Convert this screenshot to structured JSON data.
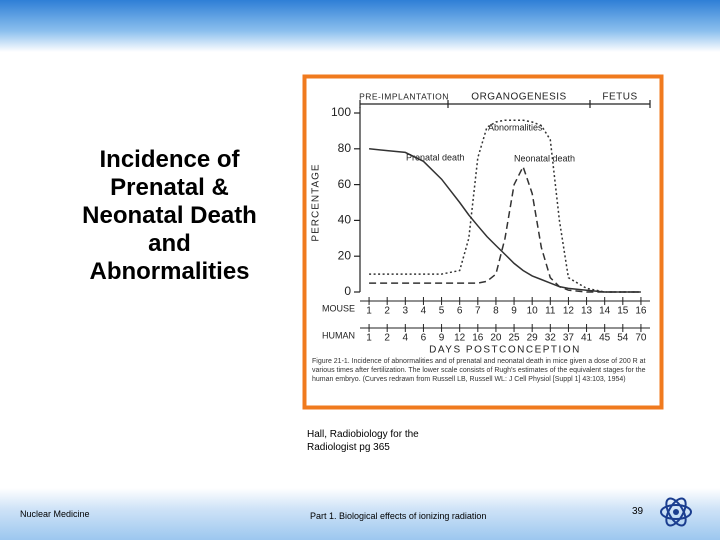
{
  "slide": {
    "title": "Incidence of Prenatal & Neonatal Death and Abnormalities",
    "citation": "Hall, Radiobiology for the Radiologist pg 365",
    "footer_left": "Nuclear Medicine",
    "footer_center": "Part 1. Biological effects of ionizing radiation",
    "page_number": "39"
  },
  "chart_data": {
    "type": "line",
    "ylabel": "PERCENTAGE",
    "xlabel": "DAYS POSTCONCEPTION",
    "stages": [
      "PRE-IMPLANTATION",
      "ORGANOGENESIS",
      "FETUS"
    ],
    "row_labels": [
      "MOUSE",
      "HUMAN"
    ],
    "caption": "Figure 21-1. Incidence of abnormalities and of prenatal and neonatal death in mice given a dose of 200 R at various times after fertilization. The lower scale consists of Rugh's estimates of the equivalent stages for the human embryo. (Curves redrawn from Russell LB, Russell WL: J Cell Physiol [Suppl 1] 43:103, 1954)",
    "xlim": [
      0.5,
      16.5
    ],
    "xticks": [
      1,
      2,
      3,
      4,
      5,
      6,
      7,
      8,
      9,
      10,
      11,
      12,
      13,
      14,
      15,
      16
    ],
    "human_ticks": [
      1,
      2,
      4,
      6,
      9,
      12,
      16,
      20,
      25,
      29,
      32,
      37,
      41,
      45,
      54,
      70
    ],
    "ylim": [
      0,
      100
    ],
    "yticks": [
      0,
      20,
      40,
      60,
      80,
      100
    ],
    "x": [
      1,
      2,
      3,
      4,
      5,
      6,
      6.5,
      7,
      7.5,
      8,
      8.5,
      9,
      9.5,
      10,
      10.5,
      11,
      11.5,
      12,
      13,
      14,
      15,
      16
    ],
    "series": [
      {
        "name": "Prenatal death",
        "color": "#333333",
        "dash": "solid",
        "values": [
          80,
          79,
          78,
          73,
          63,
          50,
          43,
          37,
          31,
          26,
          21,
          16,
          12,
          9,
          7,
          5,
          3,
          2,
          1,
          0,
          0,
          0
        ]
      },
      {
        "name": "Neonatal death",
        "color": "#333333",
        "dash": "dashed",
        "values": [
          5,
          5,
          5,
          5,
          5,
          5,
          5,
          5,
          6,
          10,
          30,
          60,
          70,
          55,
          25,
          8,
          3,
          1,
          0,
          0,
          0,
          0
        ]
      },
      {
        "name": "Abnormalities",
        "color": "#333333",
        "dash": "dotted",
        "values": [
          10,
          10,
          10,
          10,
          10,
          12,
          30,
          75,
          92,
          95,
          96,
          96,
          96,
          95,
          93,
          85,
          40,
          8,
          2,
          0,
          0,
          0
        ]
      }
    ]
  }
}
